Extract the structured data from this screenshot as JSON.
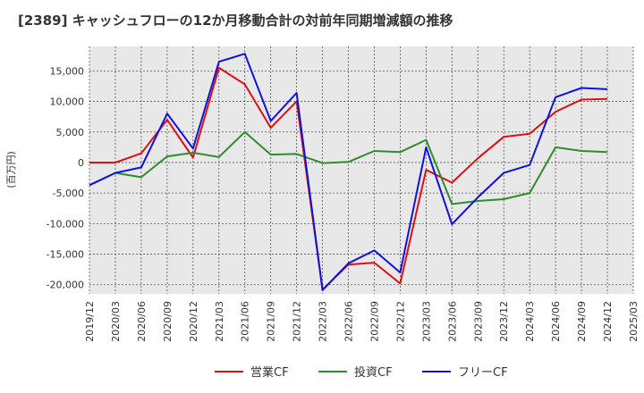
{
  "chart_data": {
    "type": "line",
    "title": "[2389]  キャッシュフローの12か月移動合計の対前年同期増減額の推移",
    "ylabel": "(百万円)",
    "xlabel": "",
    "ylim": [
      -21500,
      19000
    ],
    "yticks": [
      -20000,
      -15000,
      -10000,
      -5000,
      0,
      5000,
      10000,
      15000
    ],
    "ytick_labels": [
      "-20,000",
      "-15,000",
      "-10,000",
      "-5,000",
      "0",
      "5,000",
      "10,000",
      "15,000"
    ],
    "xtick_labels": [
      "2019/12",
      "2020/03",
      "2020/06",
      "2020/09",
      "2020/12",
      "2021/03",
      "2021/06",
      "2021/09",
      "2021/12",
      "2022/03",
      "2022/06",
      "2022/09",
      "2022/12",
      "2023/03",
      "2023/06",
      "2023/09",
      "2023/12",
      "2024/03",
      "2024/06",
      "2024/09",
      "2024/12",
      "2025/03"
    ],
    "grid": true,
    "legend_position": "bottom-center",
    "series": [
      {
        "name": "営業CF",
        "color": "#dd1111",
        "x": [
          "2019/12",
          "2020/03",
          "2020/06",
          "2020/09",
          "2020/12",
          "2021/03",
          "2021/06",
          "2021/09",
          "2021/12",
          "2022/03",
          "2022/06",
          "2022/09",
          "2022/12",
          "2023/03",
          "2023/06",
          "2023/09",
          "2023/12",
          "2024/03",
          "2024/06",
          "2024/09",
          "2024/12"
        ],
        "values": [
          0,
          0,
          1500,
          7000,
          800,
          15500,
          12800,
          5700,
          10000,
          -20800,
          -16700,
          -16400,
          -19800,
          -1200,
          -3300,
          700,
          4200,
          4700,
          8300,
          10300,
          10400
        ]
      },
      {
        "name": "投資CF",
        "color": "#2e8b2e",
        "x": [
          "2019/12",
          "2020/03",
          "2020/06",
          "2020/09",
          "2020/12",
          "2021/03",
          "2021/06",
          "2021/09",
          "2021/12",
          "2022/03",
          "2022/06",
          "2022/09",
          "2022/12",
          "2023/03",
          "2023/06",
          "2023/09",
          "2023/12",
          "2024/03",
          "2024/06",
          "2024/09",
          "2024/12"
        ],
        "values": [
          -3700,
          -1700,
          -2400,
          1000,
          1600,
          900,
          5000,
          1300,
          1400,
          -100,
          100,
          1900,
          1700,
          3700,
          -6800,
          -6300,
          -6000,
          -5000,
          2500,
          1900,
          1700
        ]
      },
      {
        "name": "フリーCF",
        "color": "#1111dd",
        "x": [
          "2019/12",
          "2020/03",
          "2020/06",
          "2020/09",
          "2020/12",
          "2021/03",
          "2021/06",
          "2021/09",
          "2021/12",
          "2022/03",
          "2022/06",
          "2022/09",
          "2022/12",
          "2023/03",
          "2023/06",
          "2023/09",
          "2023/12",
          "2024/03",
          "2024/06",
          "2024/09",
          "2024/12"
        ],
        "values": [
          -3700,
          -1700,
          -800,
          8000,
          2300,
          16500,
          17800,
          6800,
          11400,
          -20900,
          -16500,
          -14400,
          -18000,
          2500,
          -10100,
          -5700,
          -1700,
          -400,
          10700,
          12200,
          12000
        ]
      }
    ]
  }
}
